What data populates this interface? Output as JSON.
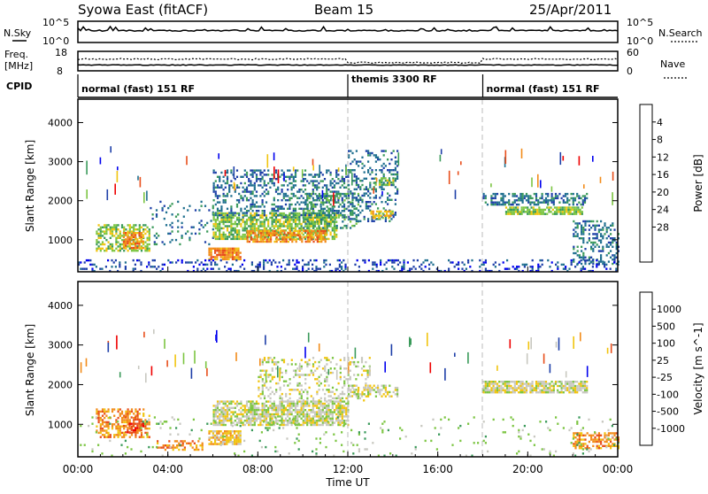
{
  "header": {
    "station": "Syowa East (fitACF)",
    "beam": "Beam 15",
    "date": "25/Apr/2011"
  },
  "nsky": {
    "label": "N.Sky",
    "ticks_left": [
      "10^5",
      "10^0"
    ],
    "label_right": "N.Search",
    "ticks_right": [
      "10^5",
      "10^0"
    ]
  },
  "freq": {
    "label_line1": "Freq.",
    "label_line2": "[MHz]",
    "ticks_left": [
      "18",
      "8"
    ],
    "label_right": "Nave",
    "ticks_right": [
      "60",
      "0"
    ]
  },
  "cpid": {
    "label": "CPID",
    "segments": [
      {
        "start_h": 0,
        "end_h": 12,
        "text": "normal (fast) 151 RF"
      },
      {
        "start_h": 12,
        "end_h": 18,
        "text": "themis 3300 RF"
      },
      {
        "start_h": 18,
        "end_h": 24,
        "text": "normal (fast) 151 RF"
      }
    ]
  },
  "axes": {
    "xlabel": "Time UT",
    "ylabel": "Slant Range [km]",
    "xticks": [
      "00:00",
      "04:00",
      "08:00",
      "12:00",
      "16:00",
      "20:00",
      "00:00"
    ],
    "yticks": [
      "1000",
      "2000",
      "3000",
      "4000"
    ]
  },
  "chart_data": [
    {
      "type": "heatmap",
      "panel": "power",
      "xlabel": "Time UT",
      "ylabel": "Slant Range [km]",
      "xlim": [
        0,
        24
      ],
      "ylim": [
        180,
        4600
      ],
      "colorbar_label": "Power [dB]",
      "colorbar_ticks": [
        "4",
        "8",
        "12",
        "16",
        "20",
        "24",
        "28"
      ],
      "colors": [
        "#0000ee",
        "#1e3fa8",
        "#1f6f8f",
        "#3a9a5a",
        "#7cc542",
        "#f1c40f",
        "#f28c1a",
        "#e84e1b",
        "#ee0000"
      ],
      "regions": [
        {
          "t": [
            0.8,
            3.2
          ],
          "r": [
            700,
            1400
          ],
          "level": 4,
          "density": 0.55
        },
        {
          "t": [
            2.0,
            2.9
          ],
          "r": [
            800,
            1200
          ],
          "level": 6,
          "density": 0.6
        },
        {
          "t": [
            3.2,
            6.0
          ],
          "r": [
            900,
            2000
          ],
          "level": 2,
          "density": 0.12
        },
        {
          "t": [
            5.8,
            7.2
          ],
          "r": [
            500,
            800
          ],
          "level": 6,
          "density": 0.8
        },
        {
          "t": [
            6.0,
            11.5
          ],
          "r": [
            1000,
            1700
          ],
          "level": 4,
          "density": 0.7
        },
        {
          "t": [
            7.5,
            11.0
          ],
          "r": [
            950,
            1250
          ],
          "level": 6,
          "density": 0.7
        },
        {
          "t": [
            6.0,
            12.0
          ],
          "r": [
            1600,
            2800
          ],
          "level": 2,
          "density": 0.35
        },
        {
          "t": [
            10.0,
            12.5
          ],
          "r": [
            1300,
            2200
          ],
          "level": 3,
          "density": 0.35
        },
        {
          "t": [
            12.0,
            14.2
          ],
          "r": [
            1500,
            3300
          ],
          "level": 2,
          "density": 0.3
        },
        {
          "t": [
            13.0,
            14.0
          ],
          "r": [
            1550,
            1750
          ],
          "level": 5,
          "density": 0.7
        },
        {
          "t": [
            13.2,
            14.0
          ],
          "r": [
            2400,
            2600
          ],
          "level": 4,
          "density": 0.6
        },
        {
          "t": [
            18.0,
            22.6
          ],
          "r": [
            1900,
            2200
          ],
          "level": 2,
          "density": 0.55
        },
        {
          "t": [
            19.0,
            22.4
          ],
          "r": [
            1650,
            1850
          ],
          "level": 4,
          "density": 0.8
        },
        {
          "t": [
            22.0,
            24.0
          ],
          "r": [
            400,
            1500
          ],
          "level": 2,
          "density": 0.35
        },
        {
          "t": [
            0.0,
            24.0
          ],
          "r": [
            200,
            500
          ],
          "level": 1,
          "density": 0.25
        }
      ]
    },
    {
      "type": "heatmap",
      "panel": "velocity",
      "xlabel": "Time UT",
      "ylabel": "Slant Range [km]",
      "xlim": [
        0,
        24
      ],
      "ylim": [
        180,
        4600
      ],
      "colorbar_label": "Velocity [m s^-1]",
      "colorbar_ticks": [
        "1000",
        "500",
        "100",
        "25",
        "-25",
        "-100",
        "-500",
        "-1000"
      ],
      "colors": [
        "#0000ee",
        "#1e3fa8",
        "#3a9a5a",
        "#7cc542",
        "#c8c8c0",
        "#f1c40f",
        "#f28c1a",
        "#e84e1b",
        "#ee0000"
      ],
      "regions": [
        {
          "t": [
            0.8,
            3.2
          ],
          "r": [
            700,
            1400
          ],
          "level": 6,
          "density": 0.5
        },
        {
          "t": [
            2.0,
            2.9
          ],
          "r": [
            800,
            1200
          ],
          "level": 7,
          "density": 0.5
        },
        {
          "t": [
            5.8,
            7.2
          ],
          "r": [
            500,
            850
          ],
          "level": 5,
          "density": 0.8
        },
        {
          "t": [
            6.0,
            12.0
          ],
          "r": [
            1000,
            1600
          ],
          "level": 4,
          "density": 0.75
        },
        {
          "t": [
            8.0,
            13.0
          ],
          "r": [
            1600,
            2700
          ],
          "level": 4,
          "density": 0.25
        },
        {
          "t": [
            12.0,
            14.2
          ],
          "r": [
            1700,
            2000
          ],
          "level": 4,
          "density": 0.5
        },
        {
          "t": [
            18.0,
            22.6
          ],
          "r": [
            1800,
            2100
          ],
          "level": 4,
          "density": 0.8
        },
        {
          "t": [
            22.0,
            24.0
          ],
          "r": [
            400,
            800
          ],
          "level": 6,
          "density": 0.55
        },
        {
          "t": [
            3.5,
            5.5
          ],
          "r": [
            350,
            600
          ],
          "level": 6,
          "density": 0.45
        },
        {
          "t": [
            0.0,
            24.0
          ],
          "r": [
            200,
            1200
          ],
          "level": 3,
          "density": 0.05
        }
      ]
    }
  ]
}
